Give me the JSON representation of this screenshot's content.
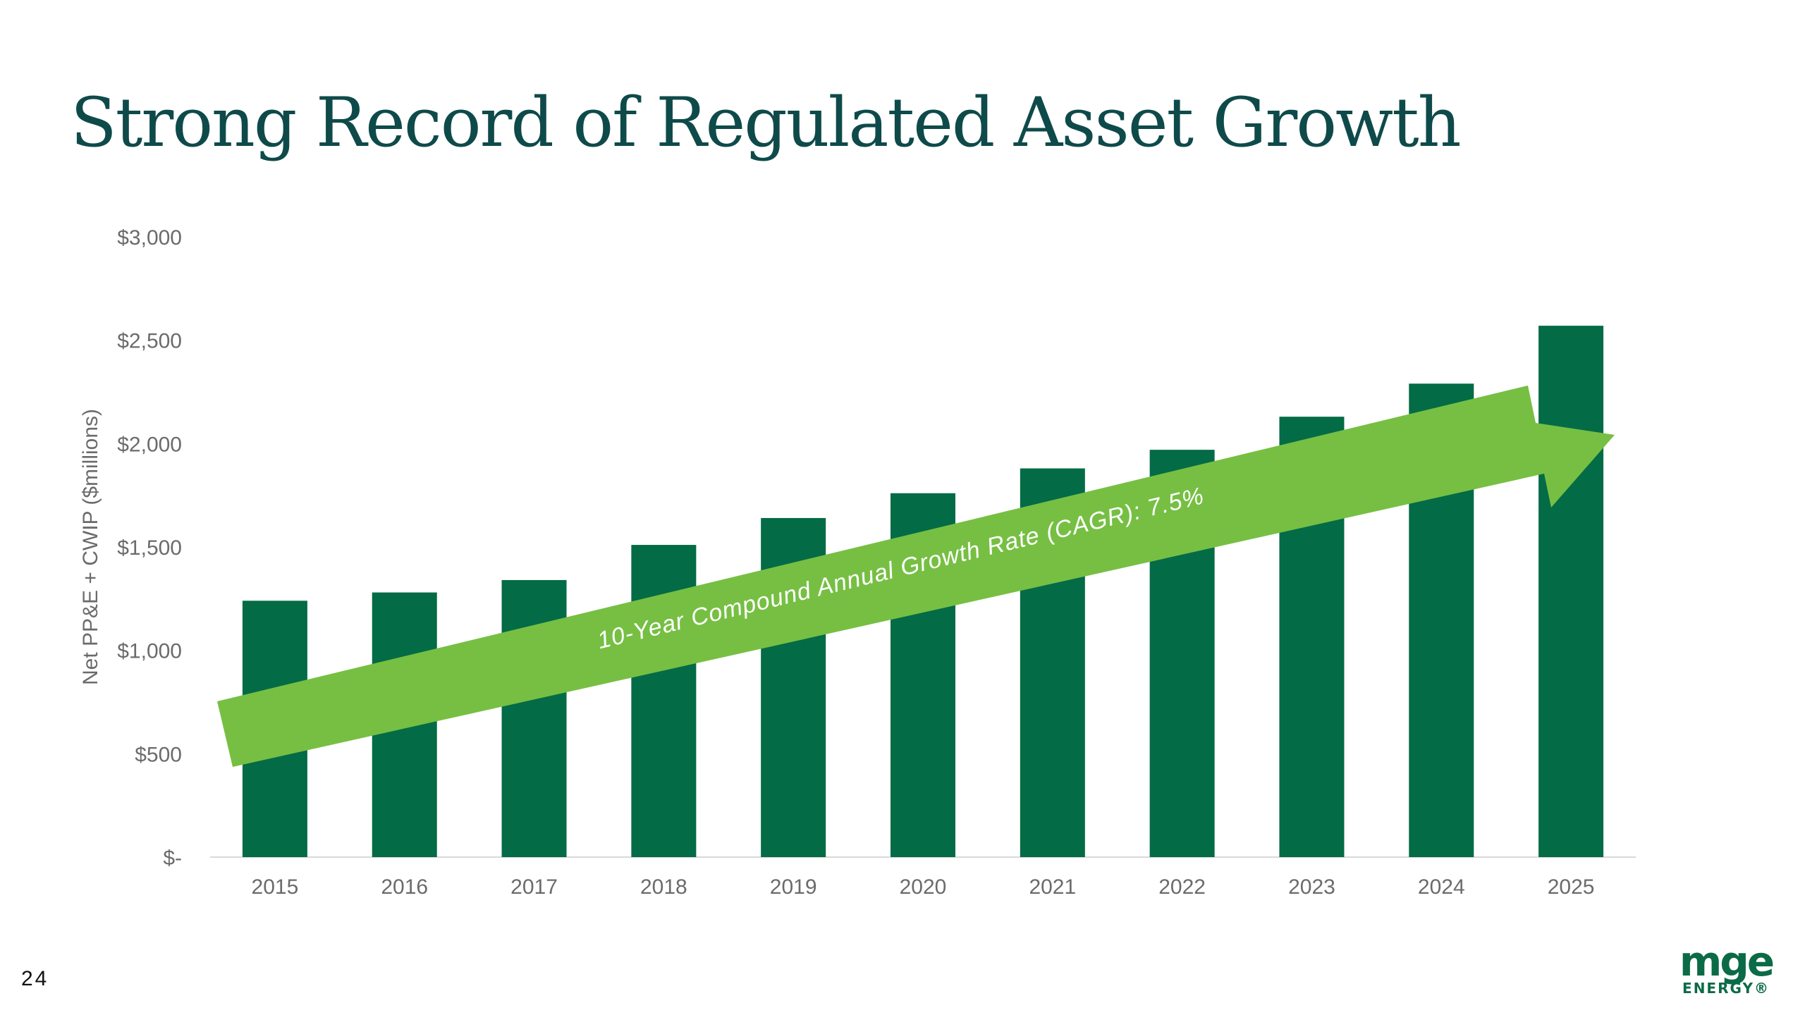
{
  "slide": {
    "title": "Strong Record of Regulated Asset Growth",
    "page_number": "24"
  },
  "logo": {
    "main": "mge",
    "sub": "ENERGY®",
    "color": "#0b6b47"
  },
  "colors": {
    "bar": "#036b46",
    "arrow": "#76bf43",
    "title": "#0f4a4a",
    "axis_text": "#6b6b6b"
  },
  "chart_data": {
    "type": "bar",
    "title": "",
    "xlabel": "",
    "ylabel": "Net PP&E + CWIP ($millions)",
    "ylim": [
      0,
      3000
    ],
    "yticks": [
      {
        "value": 0,
        "label": "$-"
      },
      {
        "value": 500,
        "label": "$500"
      },
      {
        "value": 1000,
        "label": "$1,000"
      },
      {
        "value": 1500,
        "label": "$1,500"
      },
      {
        "value": 2000,
        "label": "$2,000"
      },
      {
        "value": 2500,
        "label": "$2,500"
      },
      {
        "value": 3000,
        "label": "$3,000"
      }
    ],
    "categories": [
      "2015",
      "2016",
      "2017",
      "2018",
      "2019",
      "2020",
      "2021",
      "2022",
      "2023",
      "2024",
      "2025"
    ],
    "values": [
      1240,
      1280,
      1340,
      1510,
      1640,
      1760,
      1880,
      1970,
      2130,
      2290,
      2570
    ],
    "grid": false,
    "legend": "none",
    "annotation": {
      "text": "10-Year Compound Annual Growth Rate (CAGR): 7.5%",
      "shape": "arrow",
      "direction": "up-right"
    }
  }
}
